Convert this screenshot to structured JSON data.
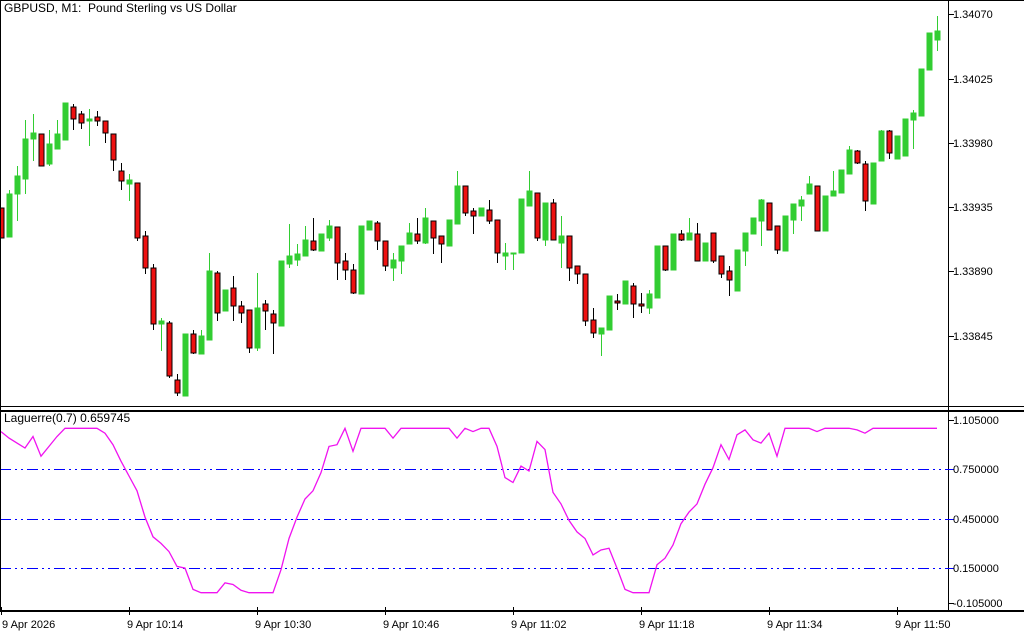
{
  "window": {
    "title": "GBPUSD, M1:  Pound Sterling vs US Dollar"
  },
  "colors": {
    "background": "#ffffff",
    "bull": "#32cd32",
    "bear": "#ee1111",
    "bear_outline": "#000000",
    "indicator_line": "#f013f0",
    "level_line": "#0000ff",
    "axis": "#000000",
    "text": "#000000"
  },
  "chart_data": [
    {
      "type": "candlestick",
      "title": "GBPUSD, M1:  Pound Sterling vs US Dollar",
      "symbol": "GBPUSD",
      "timeframe": "M1",
      "grid": false,
      "y_axis": {
        "ylim": [
          1.33795,
          1.3408
        ],
        "tick_values": [
          1.3407,
          1.34025,
          1.3398,
          1.33935,
          1.3389,
          1.33845
        ],
        "tick_labels": [
          "1.34070",
          "1.34025",
          "1.33980",
          "1.33935",
          "1.33890",
          "1.33845"
        ]
      },
      "x_axis": {
        "labels": [
          "9 Apr 2026",
          "9 Apr 10:14",
          "9 Apr 10:30",
          "9 Apr 10:46",
          "9 Apr 11:02",
          "9 Apr 11:18",
          "9 Apr 11:34",
          "9 Apr 11:50"
        ],
        "label_indices": [
          0,
          16,
          32,
          48,
          64,
          80,
          96,
          112
        ]
      },
      "candles": [
        [
          1.33934,
          1.33934,
          1.33913,
          1.33913
        ],
        [
          1.33914,
          1.33947,
          1.33914,
          1.33944
        ],
        [
          1.33944,
          1.33964,
          1.33925,
          1.33957
        ],
        [
          1.33955,
          1.33996,
          1.33944,
          1.33983
        ],
        [
          1.33983,
          1.34,
          1.33967,
          1.33987
        ],
        [
          1.33986,
          1.33986,
          1.33964,
          1.33964
        ],
        [
          1.33965,
          1.33989,
          1.33964,
          1.33979
        ],
        [
          1.33976,
          1.33996,
          1.33976,
          1.33986
        ],
        [
          1.33982,
          1.34008,
          1.33982,
          1.34008
        ],
        [
          1.34005,
          1.34007,
          1.33989,
          1.33997
        ],
        [
          1.34,
          1.34002,
          1.3399,
          1.33994
        ],
        [
          1.33995,
          1.34004,
          1.33978,
          1.33997
        ],
        [
          1.33998,
          1.34002,
          1.33992,
          1.33995
        ],
        [
          1.33995,
          1.33995,
          1.3398,
          1.33987
        ],
        [
          1.33986,
          1.33986,
          1.3396,
          1.33968
        ],
        [
          1.3396,
          1.33966,
          1.33947,
          1.33953
        ],
        [
          1.33951,
          1.33958,
          1.33939,
          1.33954
        ],
        [
          1.33952,
          1.33952,
          1.33911,
          1.33913
        ],
        [
          1.33915,
          1.33918,
          1.33888,
          1.33892
        ],
        [
          1.33892,
          1.33895,
          1.33849,
          1.33853
        ],
        [
          1.33853,
          1.33857,
          1.33834,
          1.33855
        ],
        [
          1.33854,
          1.33855,
          1.33815,
          1.33817
        ],
        [
          1.33814,
          1.33818,
          1.33803,
          1.33805
        ],
        [
          1.33803,
          1.33846,
          1.33803,
          1.33846
        ],
        [
          1.33846,
          1.33849,
          1.33832,
          1.33833
        ],
        [
          1.33832,
          1.33849,
          1.33832,
          1.33845
        ],
        [
          1.33842,
          1.33903,
          1.33842,
          1.3389
        ],
        [
          1.33889,
          1.3389,
          1.33855,
          1.33861
        ],
        [
          1.33862,
          1.33877,
          1.33862,
          1.33877
        ],
        [
          1.33878,
          1.33887,
          1.33855,
          1.33866
        ],
        [
          1.33866,
          1.33869,
          1.33854,
          1.33861
        ],
        [
          1.33863,
          1.33863,
          1.33833,
          1.33836
        ],
        [
          1.33836,
          1.33889,
          1.33834,
          1.33864
        ],
        [
          1.33867,
          1.3387,
          1.33849,
          1.33862
        ],
        [
          1.3386,
          1.33863,
          1.33832,
          1.33854
        ],
        [
          1.33852,
          1.33897,
          1.33852,
          1.33897
        ],
        [
          1.33895,
          1.33923,
          1.33892,
          1.33901
        ],
        [
          1.33898,
          1.33909,
          1.33894,
          1.33902
        ],
        [
          1.33901,
          1.33922,
          1.33901,
          1.33912
        ],
        [
          1.33911,
          1.33927,
          1.33904,
          1.33905
        ],
        [
          1.33904,
          1.33916,
          1.33904,
          1.33916
        ],
        [
          1.33913,
          1.33926,
          1.33911,
          1.33922
        ],
        [
          1.33921,
          1.33921,
          1.33884,
          1.33896
        ],
        [
          1.33897,
          1.33903,
          1.33884,
          1.33891
        ],
        [
          1.33891,
          1.33895,
          1.33874,
          1.33875
        ],
        [
          1.33874,
          1.33922,
          1.33874,
          1.33922
        ],
        [
          1.33919,
          1.33925,
          1.33919,
          1.33925
        ],
        [
          1.33924,
          1.33925,
          1.33905,
          1.33911
        ],
        [
          1.33911,
          1.33911,
          1.3389,
          1.33894
        ],
        [
          1.33892,
          1.33903,
          1.33883,
          1.33898
        ],
        [
          1.33897,
          1.33908,
          1.33888,
          1.33908
        ],
        [
          1.33909,
          1.33924,
          1.33909,
          1.33917
        ],
        [
          1.33916,
          1.33927,
          1.33909,
          1.33911
        ],
        [
          1.3391,
          1.33934,
          1.33909,
          1.33927
        ],
        [
          1.33925,
          1.33925,
          1.33902,
          1.33913
        ],
        [
          1.33915,
          1.33915,
          1.33896,
          1.33909
        ],
        [
          1.33908,
          1.33926,
          1.33908,
          1.33926
        ],
        [
          1.33923,
          1.3396,
          1.33923,
          1.3395
        ],
        [
          1.3395,
          1.3395,
          1.33929,
          1.33931
        ],
        [
          1.33932,
          1.33934,
          1.33916,
          1.33929
        ],
        [
          1.33929,
          1.33934,
          1.33929,
          1.33934
        ],
        [
          1.33933,
          1.3394,
          1.33923,
          1.33925
        ],
        [
          1.33926,
          1.33926,
          1.33896,
          1.33903
        ],
        [
          1.33901,
          1.3391,
          1.33891,
          1.33903
        ],
        [
          1.33902,
          1.33903,
          1.33891,
          1.33903
        ],
        [
          1.33903,
          1.33941,
          1.33903,
          1.33941
        ],
        [
          1.33936,
          1.3396,
          1.33936,
          1.33946
        ],
        [
          1.33945,
          1.33945,
          1.33911,
          1.33913
        ],
        [
          1.33912,
          1.33938,
          1.33908,
          1.33938
        ],
        [
          1.33938,
          1.33941,
          1.33912,
          1.33912
        ],
        [
          1.3391,
          1.33929,
          1.33892,
          1.33915
        ],
        [
          1.33915,
          1.33915,
          1.33883,
          1.33892
        ],
        [
          1.33894,
          1.33894,
          1.33881,
          1.33888
        ],
        [
          1.33888,
          1.33888,
          1.33852,
          1.33855
        ],
        [
          1.33856,
          1.33864,
          1.33843,
          1.33847
        ],
        [
          1.33846,
          1.3385,
          1.33831,
          1.3385
        ],
        [
          1.33849,
          1.33873,
          1.33849,
          1.33873
        ],
        [
          1.33869,
          1.33874,
          1.33863,
          1.33868
        ],
        [
          1.33867,
          1.33883,
          1.33867,
          1.33883
        ],
        [
          1.3388,
          1.33882,
          1.33857,
          1.33867
        ],
        [
          1.33867,
          1.33875,
          1.33861,
          1.33866
        ],
        [
          1.33864,
          1.33877,
          1.3386,
          1.33874
        ],
        [
          1.33871,
          1.33908,
          1.33871,
          1.33908
        ],
        [
          1.33908,
          1.33908,
          1.3389,
          1.33891
        ],
        [
          1.33891,
          1.33916,
          1.33891,
          1.33916
        ],
        [
          1.33916,
          1.33919,
          1.33911,
          1.33912
        ],
        [
          1.33912,
          1.33927,
          1.33912,
          1.33917
        ],
        [
          1.33916,
          1.33924,
          1.33897,
          1.33897
        ],
        [
          1.33897,
          1.3391,
          1.33897,
          1.3391
        ],
        [
          1.33917,
          1.33917,
          1.33896,
          1.33897
        ],
        [
          1.33901,
          1.33901,
          1.33885,
          1.33888
        ],
        [
          1.3389,
          1.33894,
          1.33873,
          1.33884
        ],
        [
          1.33876,
          1.33905,
          1.33876,
          1.33905
        ],
        [
          1.33904,
          1.33917,
          1.33894,
          1.33917
        ],
        [
          1.33916,
          1.33927,
          1.33916,
          1.33927
        ],
        [
          1.33925,
          1.33941,
          1.33908,
          1.3394
        ],
        [
          1.33938,
          1.33938,
          1.33919,
          1.33919
        ],
        [
          1.33922,
          1.33922,
          1.33902,
          1.33905
        ],
        [
          1.33904,
          1.33929,
          1.33904,
          1.33929
        ],
        [
          1.33926,
          1.33937,
          1.33916,
          1.33937
        ],
        [
          1.33936,
          1.33943,
          1.33925,
          1.3394
        ],
        [
          1.33944,
          1.33957,
          1.33944,
          1.33951
        ],
        [
          1.3395,
          1.3395,
          1.33918,
          1.33918
        ],
        [
          1.33918,
          1.33943,
          1.33918,
          1.33943
        ],
        [
          1.33943,
          1.3396,
          1.33943,
          1.33946
        ],
        [
          1.33945,
          1.33961,
          1.33945,
          1.33961
        ],
        [
          1.33958,
          1.33978,
          1.33958,
          1.33975
        ],
        [
          1.33974,
          1.33975,
          1.33965,
          1.33966
        ],
        [
          1.33965,
          1.33967,
          1.33932,
          1.33939
        ],
        [
          1.33937,
          1.33966,
          1.33937,
          1.33966
        ],
        [
          1.33967,
          1.33989,
          1.33967,
          1.33988
        ],
        [
          1.33988,
          1.33989,
          1.33969,
          1.33973
        ],
        [
          1.33969,
          1.33985,
          1.33969,
          1.33985
        ],
        [
          1.33971,
          1.33997,
          1.33971,
          1.33997
        ],
        [
          1.33996,
          1.34003,
          1.33976,
          1.34001
        ],
        [
          1.33999,
          1.34032,
          1.33999,
          1.34032
        ],
        [
          1.34031,
          1.34057,
          1.34031,
          1.34057
        ],
        [
          1.34052,
          1.34069,
          1.34044,
          1.34058
        ]
      ]
    },
    {
      "type": "line",
      "name": "Laguerre",
      "params": "0.7",
      "label": "Laguerre(0.7)",
      "current_value": "0.659745",
      "levels": [
        0.75,
        0.45,
        0.15
      ],
      "y_axis": {
        "ylim": [
          -0.105,
          1.105
        ],
        "tick_values": [
          1.105,
          0.75,
          0.45,
          0.15,
          -0.105
        ],
        "tick_labels": [
          "1.105000",
          "0.750000",
          "0.450000",
          "0.150000",
          "-0.105000"
        ]
      },
      "values": [
        0.98,
        0.94,
        0.91,
        0.88,
        0.95,
        0.83,
        0.89,
        0.95,
        1,
        1,
        1,
        1,
        1,
        0.97,
        0.9,
        0.8,
        0.71,
        0.62,
        0.46,
        0.34,
        0.3,
        0.25,
        0.16,
        0.15,
        0.02,
        0,
        0,
        0,
        0.06,
        0.05,
        0.015,
        0,
        0,
        0,
        0,
        0.14,
        0.33,
        0.46,
        0.57,
        0.62,
        0.73,
        0.89,
        0.9,
        1,
        0.86,
        1,
        1,
        1,
        1,
        0.94,
        1,
        1,
        1,
        1,
        1,
        1,
        1,
        0.94,
        1,
        0.98,
        1,
        1,
        0.89,
        0.7,
        0.67,
        0.77,
        0.74,
        0.92,
        0.87,
        0.61,
        0.54,
        0.44,
        0.37,
        0.33,
        0.23,
        0.26,
        0.27,
        0.15,
        0.02,
        0,
        0,
        0,
        0.17,
        0.21,
        0.29,
        0.42,
        0.49,
        0.54,
        0.66,
        0.76,
        0.9,
        0.81,
        0.96,
        0.99,
        0.93,
        0.91,
        0.97,
        0.83,
        1,
        1,
        1,
        1,
        0.98,
        1,
        1,
        1,
        1,
        0.99,
        0.97,
        1,
        1,
        1,
        1,
        1,
        1,
        1,
        1,
        1
      ]
    }
  ]
}
